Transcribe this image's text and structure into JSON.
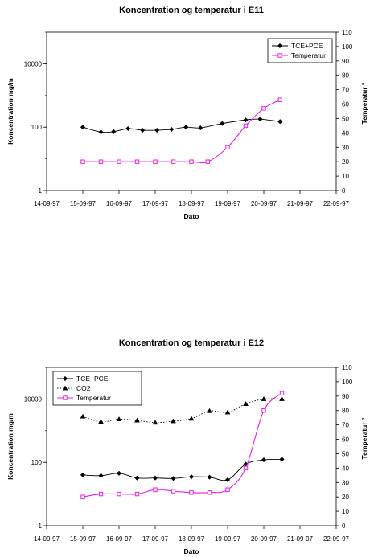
{
  "chart_data": [
    {
      "type": "line",
      "title": "Koncentration og temperatur i E11",
      "xlabel": "Dato",
      "ylabel": "Koncentration mg/m",
      "y2label": "Temperatur °",
      "x_ticks": [
        "14-09-97",
        "15-09-97",
        "16-09-97",
        "17-09-97",
        "18-09-97",
        "19-09-97",
        "20-09-97",
        "21-09-97",
        "22-09-97"
      ],
      "xlim_days": [
        0,
        8
      ],
      "y_scale": "log",
      "ylim": [
        1,
        100000
      ],
      "y_ticks": [
        "1",
        "100",
        "10000"
      ],
      "y2lim": [
        0,
        110
      ],
      "y2_ticks": [
        "0",
        "10",
        "20",
        "30",
        "40",
        "50",
        "60",
        "70",
        "80",
        "90",
        "100",
        "110"
      ],
      "legend_position": "top-right",
      "series": [
        {
          "name": "TCE+PCE",
          "axis": "left",
          "color": "#000000",
          "marker": "diamond",
          "line": "solid",
          "x": [
            1.0,
            1.5,
            1.85,
            2.25,
            2.65,
            3.05,
            3.45,
            3.85,
            4.25,
            4.85,
            5.5,
            5.9,
            6.45
          ],
          "y": [
            100,
            70,
            72,
            90,
            80,
            80,
            85,
            100,
            95,
            130,
            170,
            180,
            150
          ]
        },
        {
          "name": "Temperatur",
          "axis": "right",
          "color": "#e020e0",
          "marker": "square",
          "line": "solid",
          "x": [
            1.0,
            1.5,
            2.0,
            2.5,
            3.0,
            3.5,
            4.0,
            4.45,
            5.0,
            5.5,
            6.0,
            6.45
          ],
          "y": [
            20,
            20,
            20,
            20,
            20,
            20,
            20,
            20,
            30,
            45,
            57,
            63
          ]
        }
      ]
    },
    {
      "type": "line",
      "title": "Koncentration og temperatur i E12",
      "xlabel": "Dato",
      "ylabel": "Koncentration mg/m",
      "y2label": "Temperatur °",
      "x_ticks": [
        "14-09-97",
        "15-09-97",
        "16-09-97",
        "17-09-97",
        "18-09-97",
        "19-09-97",
        "20-09-97",
        "21-09-97",
        "22-09-97"
      ],
      "xlim_days": [
        0,
        8
      ],
      "y_scale": "log",
      "ylim": [
        1,
        100000
      ],
      "y_ticks": [
        "1",
        "100",
        "10000"
      ],
      "y2lim": [
        0,
        110
      ],
      "y2_ticks": [
        "0",
        "10",
        "20",
        "30",
        "40",
        "50",
        "60",
        "70",
        "80",
        "90",
        "100",
        "110"
      ],
      "legend_position": "top-left",
      "series": [
        {
          "name": "TCE+PCE",
          "axis": "left",
          "color": "#000000",
          "marker": "diamond",
          "line": "solid",
          "x": [
            1.0,
            1.5,
            2.0,
            2.5,
            3.0,
            3.5,
            4.0,
            4.5,
            5.0,
            5.5,
            6.0,
            6.5
          ],
          "y": [
            40,
            38,
            45,
            32,
            32,
            31,
            35,
            34,
            28,
            88,
            120,
            125
          ]
        },
        {
          "name": "CO2",
          "axis": "left",
          "color": "#000000",
          "marker": "triangle",
          "line": "dotted",
          "x": [
            1.0,
            1.5,
            2.0,
            2.5,
            3.0,
            3.5,
            4.0,
            4.5,
            5.0,
            5.5,
            6.0,
            6.5
          ],
          "y": [
            2800,
            1900,
            2300,
            2100,
            1800,
            2000,
            2400,
            4200,
            3800,
            7000,
            10000,
            10000
          ]
        },
        {
          "name": "Temperatur",
          "axis": "right",
          "color": "#e020e0",
          "marker": "square",
          "line": "solid",
          "x": [
            1.0,
            1.5,
            2.0,
            2.5,
            3.0,
            3.5,
            4.0,
            4.5,
            5.0,
            5.5,
            6.0,
            6.5
          ],
          "y": [
            20,
            22,
            22,
            22,
            25,
            24,
            23,
            23,
            25,
            40,
            80,
            92
          ]
        }
      ]
    }
  ]
}
